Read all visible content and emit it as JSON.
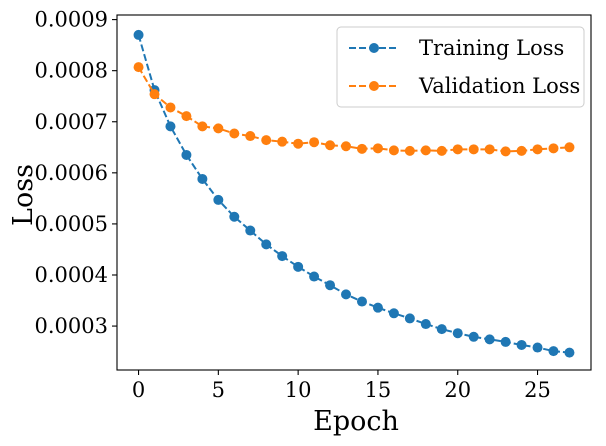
{
  "chart_data": {
    "type": "line",
    "title": "",
    "xlabel": "Epoch",
    "ylabel": "Loss",
    "xlim": [
      -1.35,
      28.35
    ],
    "ylim": [
      0.000214,
      0.000909
    ],
    "xticks": [
      0,
      5,
      10,
      15,
      20,
      25
    ],
    "xtick_labels": [
      "0",
      "5",
      "10",
      "15",
      "20",
      "25"
    ],
    "yticks": [
      0.0003,
      0.0004,
      0.0005,
      0.0006,
      0.0007,
      0.0008,
      0.0009
    ],
    "ytick_labels": [
      "0.0003",
      "0.0004",
      "0.0005",
      "0.0006",
      "0.0007",
      "0.0008",
      "0.0009"
    ],
    "grid": false,
    "legend_position": "top-right",
    "x": [
      0,
      1,
      2,
      3,
      4,
      5,
      6,
      7,
      8,
      9,
      10,
      11,
      12,
      13,
      14,
      15,
      16,
      17,
      18,
      19,
      20,
      21,
      22,
      23,
      24,
      25,
      26,
      27
    ],
    "series": [
      {
        "name": "Training Loss",
        "color": "#1f77b4",
        "values": [
          0.00087,
          0.000762,
          0.000691,
          0.000635,
          0.000588,
          0.000547,
          0.000514,
          0.000487,
          0.00046,
          0.000437,
          0.000416,
          0.000397,
          0.00038,
          0.000362,
          0.000348,
          0.000336,
          0.000325,
          0.000315,
          0.000304,
          0.000294,
          0.000286,
          0.000279,
          0.000274,
          0.000269,
          0.000263,
          0.000258,
          0.000251,
          0.000248
        ]
      },
      {
        "name": "Validation Loss",
        "color": "#ff7f0e",
        "values": [
          0.000807,
          0.000754,
          0.000728,
          0.000711,
          0.000691,
          0.000687,
          0.000677,
          0.000672,
          0.000664,
          0.000661,
          0.000657,
          0.00066,
          0.000654,
          0.000652,
          0.000647,
          0.000648,
          0.000644,
          0.000643,
          0.000644,
          0.000643,
          0.000646,
          0.000646,
          0.000646,
          0.000642,
          0.000643,
          0.000646,
          0.000648,
          0.00065
        ]
      }
    ]
  }
}
